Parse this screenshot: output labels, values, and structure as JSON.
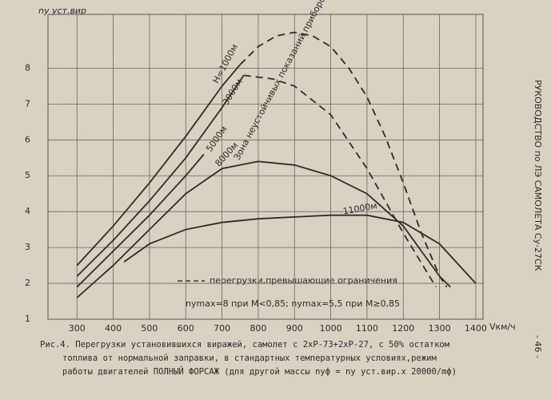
{
  "chart_data": {
    "type": "line",
    "y_label": "ny уст.вир",
    "x_label": "Vкм/ч",
    "xlim": [
      220,
      1420
    ],
    "ylim": [
      1,
      9.5
    ],
    "xticks": [
      300,
      400,
      500,
      600,
      700,
      800,
      900,
      1000,
      1100,
      1200,
      1300,
      1400
    ],
    "yticks": [
      1,
      2,
      3,
      4,
      5,
      6,
      7,
      8
    ],
    "grid": true,
    "color": "#2e2b28",
    "series": [
      {
        "name": "Н=1000м",
        "x": [
          300,
          400,
          500,
          600,
          700,
          750
        ],
        "values": [
          2.5,
          3.6,
          4.8,
          6.1,
          7.5,
          8.1
        ]
      },
      {
        "x": [
          750,
          800,
          850,
          900,
          950,
          1000,
          1050,
          1100,
          1150,
          1200,
          1250,
          1300,
          1320
        ],
        "values": [
          8.1,
          8.6,
          8.9,
          9.0,
          8.9,
          8.6,
          8.0,
          7.2,
          6.1,
          4.8,
          3.4,
          2.2,
          1.9
        ],
        "dashed": true
      },
      {
        "name": "3000м",
        "x": [
          300,
          400,
          500,
          600,
          700,
          760
        ],
        "values": [
          2.2,
          3.2,
          4.3,
          5.5,
          6.9,
          7.8
        ]
      },
      {
        "x": [
          760,
          840,
          900,
          1000,
          1100,
          1200,
          1290
        ],
        "values": [
          7.8,
          7.7,
          7.5,
          6.7,
          5.2,
          3.4,
          1.9
        ],
        "dashed": true
      },
      {
        "name": "5000м",
        "x": [
          300,
          400,
          500,
          600,
          650
        ],
        "values": [
          1.9,
          2.9,
          3.9,
          5.0,
          5.6
        ]
      },
      {
        "name": "8000м",
        "x": [
          300,
          400,
          500,
          600,
          700,
          800,
          900,
          1000,
          1100,
          1200,
          1250,
          1300,
          1330
        ],
        "values": [
          1.6,
          2.5,
          3.5,
          4.5,
          5.2,
          5.4,
          5.3,
          5.0,
          4.5,
          3.6,
          2.9,
          2.2,
          1.9
        ]
      },
      {
        "name": "11000м",
        "x": [
          430,
          500,
          600,
          700,
          800,
          900,
          1000,
          1100,
          1200,
          1300,
          1400
        ],
        "values": [
          2.6,
          3.1,
          3.5,
          3.7,
          3.8,
          3.85,
          3.9,
          3.9,
          3.7,
          3.1,
          2.0
        ]
      }
    ],
    "notes": [
      "перегрузки,превышающие ограничения",
      "nymax=8 при M<0,85; nymax=5,5 при M≥0,85",
      "Зона неустойчивых показаний приборов"
    ],
    "caption": [
      "Рис.4. Перегрузки установившихся виражей, самолет с 2хР-73+2хР-27, с 50% остатком",
      "топлива от нормальной заправки, в стандартных температурных условиях,режим",
      "работы двигателей ПОЛНЫЙ ФОРСАЖ (для другой массы nуф = nу уст.вир.x 20000/mф)"
    ],
    "side_text": [
      "РУКОВОДСТВО по ЛЭ САМОЛЕТА Су-27СК",
      "- 46 -"
    ]
  }
}
